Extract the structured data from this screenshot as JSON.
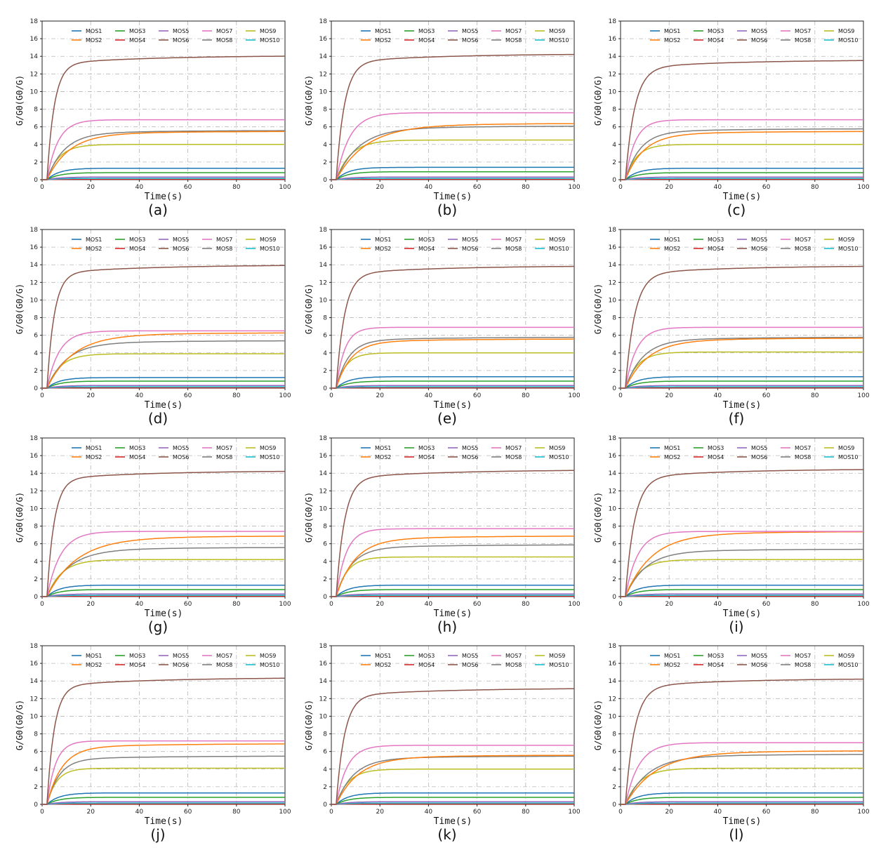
{
  "chart_data": {
    "type": "line",
    "x_label": "Time(s)",
    "y_label": "G/G0(G0/G)",
    "xlim": [
      0,
      100
    ],
    "ylim": [
      0,
      18
    ],
    "x_ticks": [
      0,
      20,
      40,
      60,
      80,
      100
    ],
    "y_ticks": [
      0,
      2,
      4,
      6,
      8,
      10,
      12,
      14,
      16,
      18
    ],
    "grid": true,
    "legend_position": "top",
    "series_colors": {
      "MOS1": "#1f77b4",
      "MOS2": "#ff7f0e",
      "MOS3": "#2ca02c",
      "MOS4": "#d62728",
      "MOS5": "#9467bd",
      "MOS6": "#8c564b",
      "MOS7": "#e377c2",
      "MOS8": "#7f7f7f",
      "MOS9": "#bcbd22",
      "MOS10": "#17becf"
    },
    "legend_order": [
      "MOS1",
      "MOS3",
      "MOS5",
      "MOS7",
      "MOS9",
      "MOS2",
      "MOS4",
      "MOS6",
      "MOS8",
      "MOS10"
    ],
    "panels": [
      {
        "label": "(a)",
        "final": {
          "MOS1": 1.3,
          "MOS2": 5.5,
          "MOS3": 0.8,
          "MOS4": 0.05,
          "MOS5": 0.3,
          "MOS6": 14.1,
          "MOS7": 6.8,
          "MOS8": 5.6,
          "MOS9": 4.0,
          "MOS10": 0.15
        }
      },
      {
        "label": "(b)",
        "final": {
          "MOS1": 1.4,
          "MOS2": 6.4,
          "MOS3": 0.9,
          "MOS4": 0.05,
          "MOS5": 0.3,
          "MOS6": 14.3,
          "MOS7": 7.6,
          "MOS8": 6.1,
          "MOS9": 4.5,
          "MOS10": 0.15
        }
      },
      {
        "label": "(c)",
        "final": {
          "MOS1": 1.3,
          "MOS2": 5.5,
          "MOS3": 0.8,
          "MOS4": 0.05,
          "MOS5": 0.3,
          "MOS6": 13.6,
          "MOS7": 6.8,
          "MOS8": 5.8,
          "MOS9": 4.0,
          "MOS10": 0.15
        }
      },
      {
        "label": "(d)",
        "final": {
          "MOS1": 1.2,
          "MOS2": 6.3,
          "MOS3": 0.8,
          "MOS4": 0.05,
          "MOS5": 0.3,
          "MOS6": 14.0,
          "MOS7": 6.5,
          "MOS8": 5.4,
          "MOS9": 3.9,
          "MOS10": 0.15
        }
      },
      {
        "label": "(e)",
        "final": {
          "MOS1": 1.3,
          "MOS2": 5.6,
          "MOS3": 0.8,
          "MOS4": 0.05,
          "MOS5": 0.3,
          "MOS6": 13.9,
          "MOS7": 6.9,
          "MOS8": 5.8,
          "MOS9": 4.0,
          "MOS10": 0.15
        }
      },
      {
        "label": "(f)",
        "final": {
          "MOS1": 1.3,
          "MOS2": 5.7,
          "MOS3": 0.8,
          "MOS4": 0.05,
          "MOS5": 0.3,
          "MOS6": 13.9,
          "MOS7": 6.9,
          "MOS8": 5.8,
          "MOS9": 4.1,
          "MOS10": 0.15
        }
      },
      {
        "label": "(g)",
        "final": {
          "MOS1": 1.3,
          "MOS2": 6.9,
          "MOS3": 0.8,
          "MOS4": 0.05,
          "MOS5": 0.3,
          "MOS6": 14.3,
          "MOS7": 7.4,
          "MOS8": 5.6,
          "MOS9": 4.2,
          "MOS10": 0.15
        }
      },
      {
        "label": "(h)",
        "final": {
          "MOS1": 1.3,
          "MOS2": 6.9,
          "MOS3": 0.8,
          "MOS4": 0.05,
          "MOS5": 0.3,
          "MOS6": 14.4,
          "MOS7": 7.7,
          "MOS8": 5.9,
          "MOS9": 4.5,
          "MOS10": 0.15
        }
      },
      {
        "label": "(i)",
        "final": {
          "MOS1": 1.3,
          "MOS2": 7.4,
          "MOS3": 0.8,
          "MOS4": 0.05,
          "MOS5": 0.3,
          "MOS6": 14.5,
          "MOS7": 7.4,
          "MOS8": 5.4,
          "MOS9": 4.2,
          "MOS10": 0.15
        }
      },
      {
        "label": "(j)",
        "final": {
          "MOS1": 1.3,
          "MOS2": 6.9,
          "MOS3": 0.8,
          "MOS4": 0.05,
          "MOS5": 0.3,
          "MOS6": 14.4,
          "MOS7": 7.2,
          "MOS8": 5.5,
          "MOS9": 4.1,
          "MOS10": 0.15
        }
      },
      {
        "label": "(k)",
        "final": {
          "MOS1": 1.3,
          "MOS2": 5.6,
          "MOS3": 0.8,
          "MOS4": 0.05,
          "MOS5": 0.3,
          "MOS6": 13.2,
          "MOS7": 6.7,
          "MOS8": 5.5,
          "MOS9": 4.0,
          "MOS10": 0.15
        }
      },
      {
        "label": "(l)",
        "final": {
          "MOS1": 1.3,
          "MOS2": 6.1,
          "MOS3": 0.8,
          "MOS4": 0.05,
          "MOS5": 0.3,
          "MOS6": 14.3,
          "MOS7": 7.0,
          "MOS8": 5.7,
          "MOS9": 4.1,
          "MOS10": 0.15
        }
      }
    ]
  }
}
